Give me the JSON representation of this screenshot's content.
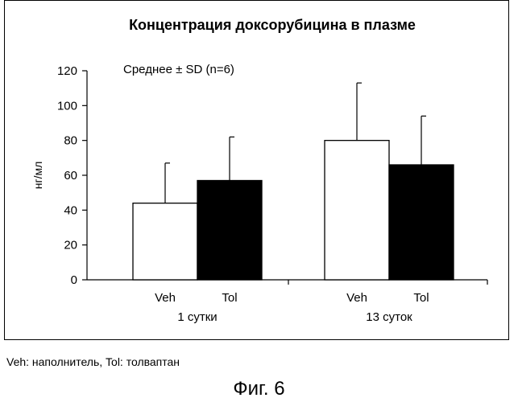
{
  "chart_data": {
    "type": "bar",
    "title": "Концентрация доксорубицина в плазме",
    "annotation": "Среднее ± SD (n=6)",
    "ylabel": "нг/мл",
    "xlabel": "",
    "ylim": [
      0,
      120
    ],
    "yticks": [
      0,
      20,
      40,
      60,
      80,
      100,
      120
    ],
    "groups": [
      "1 сутки",
      "13 суток"
    ],
    "series": [
      {
        "name": "Veh",
        "fill": "#ffffff",
        "values": [
          44,
          80
        ],
        "sd": [
          23,
          33
        ]
      },
      {
        "name": "Tol",
        "fill": "#000000",
        "values": [
          57,
          66
        ],
        "sd": [
          25,
          28
        ]
      }
    ],
    "grid": false,
    "legend": "none"
  },
  "caption": {
    "footnote": "Veh: наполнитель, Tol: толваптан",
    "figure_label": "Фиг. 6"
  }
}
